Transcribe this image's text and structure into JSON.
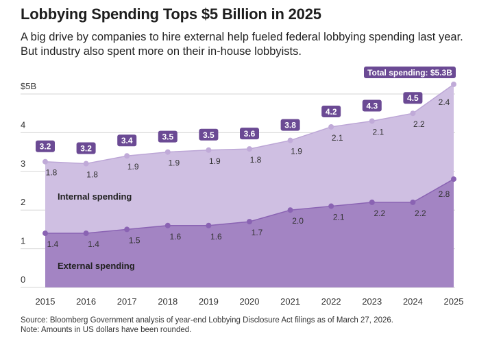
{
  "title": "Lobbying Spending Tops $5 Billion in 2025",
  "subtitle": "A big drive by companies to hire external help fueled federal lobbying spending last year. But industry also spent more on their in-house lobbyists.",
  "footer": {
    "source": "Source: Bloomberg Government analysis of year-end Lobbying Disclosure Act filings as of March 27, 2026.",
    "note": "Note: Amounts in US dollars have been rounded."
  },
  "colors": {
    "external": "#a384c3",
    "internal": "#cfbfe2",
    "external_dot": "#8a63b3",
    "internal_dot": "#c0aad8",
    "badge": "#6b4a94"
  },
  "chart_data": {
    "type": "area",
    "stacked": true,
    "title": "Lobbying Spending Tops $5 Billion in 2025",
    "x": [
      "2015",
      "2016",
      "2017",
      "2018",
      "2019",
      "2020",
      "2021",
      "2022",
      "2023",
      "2024",
      "2025"
    ],
    "y_ticks": [
      "0",
      "1",
      "2",
      "3",
      "4",
      "$5B"
    ],
    "y_tick_values": [
      0,
      1,
      2,
      3,
      4,
      5
    ],
    "ylim": [
      0,
      5.5
    ],
    "series": [
      {
        "name": "External spending",
        "values": [
          1.4,
          1.4,
          1.5,
          1.6,
          1.6,
          1.7,
          2.0,
          2.1,
          2.2,
          2.2,
          2.8
        ],
        "labels": [
          "1.4",
          "1.4",
          "1.5",
          "1.6",
          "1.6",
          "1.7",
          "2.0",
          "2.1",
          "2.2",
          "2.2",
          "2.8"
        ]
      },
      {
        "name": "Internal spending",
        "values": [
          1.8,
          1.8,
          1.9,
          1.9,
          1.9,
          1.8,
          1.9,
          2.1,
          2.1,
          2.2,
          2.4
        ],
        "labels": [
          "1.8",
          "1.8",
          "1.9",
          "1.9",
          "1.9",
          "1.8",
          "1.9",
          "2.1",
          "2.1",
          "2.2",
          "2.4"
        ]
      }
    ],
    "totals": [
      3.25,
      3.2,
      3.4,
      3.5,
      3.55,
      3.58,
      3.8,
      4.15,
      4.3,
      4.5,
      5.25
    ],
    "total_labels": [
      "3.2",
      "3.2",
      "3.4",
      "3.5",
      "3.5",
      "3.6",
      "3.8",
      "4.2",
      "4.3",
      "4.5",
      "Total spending: $5.3B"
    ]
  }
}
